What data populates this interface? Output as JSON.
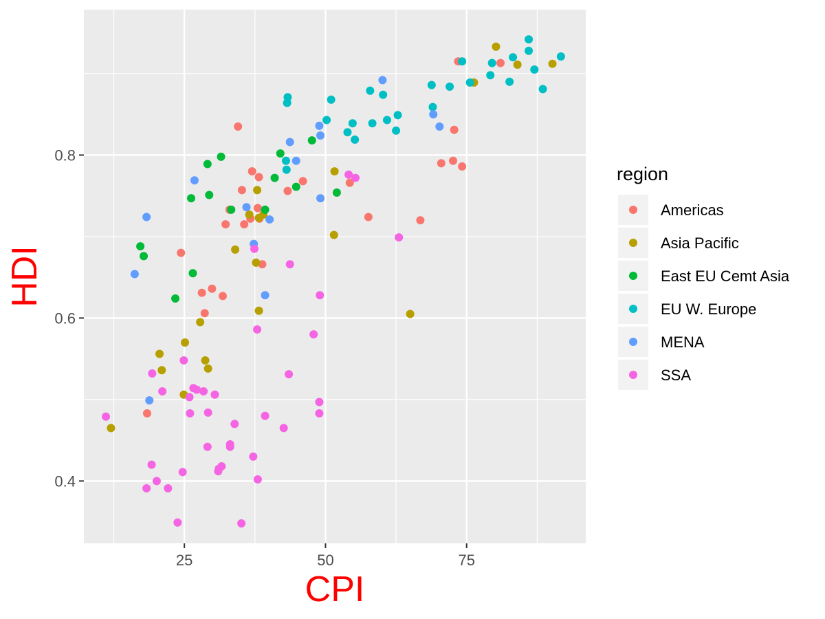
{
  "chart_data": {
    "type": "scatter",
    "xlabel": "CPI",
    "ylabel": "HDI",
    "xlim": [
      7.2,
      96.1
    ],
    "ylim": [
      0.3235,
      0.9785
    ],
    "x_ticks": [
      25,
      50,
      75
    ],
    "y_ticks": [
      0.4,
      0.6,
      0.8
    ],
    "x_tick_labels": [
      "25",
      "50",
      "75"
    ],
    "y_tick_labels": [
      "0.4",
      "0.6",
      "0.8"
    ],
    "grid": true,
    "legend": {
      "title": "region",
      "position": "right"
    },
    "axis_label_color": "#ff0000",
    "panel_background": "#ebebeb",
    "series": [
      {
        "name": "Americas",
        "color": "#f8766d",
        "points": [
          [
            73.5,
            0.915
          ],
          [
            81,
            0.913
          ],
          [
            72.8,
            0.831
          ],
          [
            34.5,
            0.835
          ],
          [
            37,
            0.78
          ],
          [
            38.2,
            0.773
          ],
          [
            35.2,
            0.757
          ],
          [
            46.0,
            0.768
          ],
          [
            72.6,
            0.793
          ],
          [
            70.5,
            0.79
          ],
          [
            74.2,
            0.786
          ],
          [
            54.3,
            0.766
          ],
          [
            43.3,
            0.756
          ],
          [
            33.0,
            0.733
          ],
          [
            32.3,
            0.715
          ],
          [
            35.6,
            0.715
          ],
          [
            36.7,
            0.722
          ],
          [
            38.0,
            0.735
          ],
          [
            38.3,
            0.722
          ],
          [
            57.6,
            0.724
          ],
          [
            66.8,
            0.72
          ],
          [
            24.4,
            0.68
          ],
          [
            38.8,
            0.666
          ],
          [
            29.9,
            0.636
          ],
          [
            28.1,
            0.631
          ],
          [
            31.8,
            0.627
          ],
          [
            28.6,
            0.606
          ],
          [
            18.4,
            0.483
          ]
        ]
      },
      {
        "name": "Asia Pacific",
        "color": "#b79f00",
        "points": [
          [
            80.2,
            0.933
          ],
          [
            84,
            0.911
          ],
          [
            76.3,
            0.889
          ],
          [
            90.2,
            0.912
          ],
          [
            51.6,
            0.78
          ],
          [
            37.9,
            0.757
          ],
          [
            51.5,
            0.702
          ],
          [
            38.2,
            0.723
          ],
          [
            36.5,
            0.727
          ],
          [
            39.0,
            0.727
          ],
          [
            34.0,
            0.684
          ],
          [
            37.7,
            0.668
          ],
          [
            65,
            0.605
          ],
          [
            38.2,
            0.609
          ],
          [
            27.8,
            0.595
          ],
          [
            25.1,
            0.57
          ],
          [
            20.6,
            0.556
          ],
          [
            21.0,
            0.536
          ],
          [
            28.7,
            0.548
          ],
          [
            29.2,
            0.538
          ],
          [
            24.9,
            0.506
          ],
          [
            12.0,
            0.465
          ]
        ]
      },
      {
        "name": "East EU Cemt Asia",
        "color": "#00ba38",
        "points": [
          [
            47.6,
            0.818
          ],
          [
            42.0,
            0.802
          ],
          [
            31.5,
            0.798
          ],
          [
            29.1,
            0.789
          ],
          [
            41.0,
            0.772
          ],
          [
            44.8,
            0.761
          ],
          [
            52.0,
            0.754
          ],
          [
            29.4,
            0.751
          ],
          [
            26.2,
            0.747
          ],
          [
            33.3,
            0.733
          ],
          [
            39.3,
            0.733
          ],
          [
            17.2,
            0.688
          ],
          [
            17.8,
            0.676
          ],
          [
            26.5,
            0.655
          ],
          [
            23.4,
            0.624
          ]
        ]
      },
      {
        "name": "EU W. Europe",
        "color": "#00bfc4",
        "points": [
          [
            86,
            0.942
          ],
          [
            86,
            0.928
          ],
          [
            91.7,
            0.921
          ],
          [
            83.2,
            0.92
          ],
          [
            79.5,
            0.913
          ],
          [
            74.2,
            0.915
          ],
          [
            87.0,
            0.905
          ],
          [
            79.2,
            0.898
          ],
          [
            75.6,
            0.889
          ],
          [
            82.6,
            0.89
          ],
          [
            88.5,
            0.881
          ],
          [
            68.8,
            0.886
          ],
          [
            72.0,
            0.884
          ],
          [
            57.9,
            0.879
          ],
          [
            60.2,
            0.874
          ],
          [
            43.3,
            0.871
          ],
          [
            51.0,
            0.868
          ],
          [
            43.2,
            0.864
          ],
          [
            69,
            0.859
          ],
          [
            50.2,
            0.843
          ],
          [
            60.9,
            0.843
          ],
          [
            62.8,
            0.849
          ],
          [
            54.8,
            0.839
          ],
          [
            58.3,
            0.839
          ],
          [
            53.9,
            0.828
          ],
          [
            62.5,
            0.83
          ],
          [
            55.2,
            0.819
          ],
          [
            43.0,
            0.793
          ],
          [
            43.1,
            0.782
          ]
        ]
      },
      {
        "name": "MENA",
        "color": "#619cff",
        "points": [
          [
            60.1,
            0.892
          ],
          [
            69.1,
            0.85
          ],
          [
            70.2,
            0.835
          ],
          [
            48.9,
            0.836
          ],
          [
            49.1,
            0.824
          ],
          [
            43.7,
            0.816
          ],
          [
            44.8,
            0.793
          ],
          [
            26.8,
            0.769
          ],
          [
            49.1,
            0.747
          ],
          [
            36.0,
            0.736
          ],
          [
            40.1,
            0.721
          ],
          [
            18.3,
            0.724
          ],
          [
            37.3,
            0.691
          ],
          [
            16.2,
            0.654
          ],
          [
            39.3,
            0.628
          ],
          [
            18.8,
            0.499
          ]
        ]
      },
      {
        "name": "SSA",
        "color": "#f564e3",
        "points": [
          [
            54.1,
            0.776
          ],
          [
            55.3,
            0.772
          ],
          [
            37.4,
            0.685
          ],
          [
            63,
            0.699
          ],
          [
            43.7,
            0.666
          ],
          [
            49.0,
            0.628
          ],
          [
            37.9,
            0.586
          ],
          [
            47.9,
            0.58
          ],
          [
            24.9,
            0.548
          ],
          [
            19.3,
            0.532
          ],
          [
            43.5,
            0.531
          ],
          [
            26.6,
            0.514
          ],
          [
            28.4,
            0.51
          ],
          [
            21.1,
            0.51
          ],
          [
            30.4,
            0.506
          ],
          [
            27.2,
            0.512
          ],
          [
            25.9,
            0.503
          ],
          [
            48.9,
            0.497
          ],
          [
            26.0,
            0.483
          ],
          [
            29.2,
            0.484
          ],
          [
            48.9,
            0.483
          ],
          [
            39.3,
            0.48
          ],
          [
            11.1,
            0.479
          ],
          [
            33.9,
            0.47
          ],
          [
            42.6,
            0.465
          ],
          [
            33.1,
            0.445
          ],
          [
            29.1,
            0.442
          ],
          [
            33.1,
            0.442
          ],
          [
            37.2,
            0.43
          ],
          [
            19.2,
            0.42
          ],
          [
            31.6,
            0.418
          ],
          [
            31.1,
            0.415
          ],
          [
            31.0,
            0.412
          ],
          [
            24.7,
            0.411
          ],
          [
            20.1,
            0.4
          ],
          [
            38.0,
            0.402
          ],
          [
            18.3,
            0.391
          ],
          [
            22.1,
            0.391
          ],
          [
            23.8,
            0.349
          ],
          [
            35.1,
            0.348
          ]
        ]
      }
    ]
  }
}
